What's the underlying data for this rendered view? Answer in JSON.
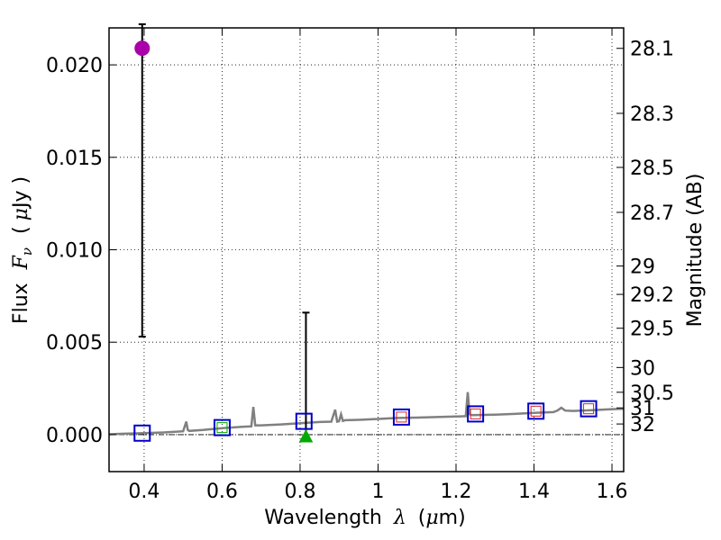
{
  "chart_data": {
    "type": "scatter",
    "xlabel_text": "Wavelength",
    "xlabel_symbol": "λ",
    "xlabel_unit_prefix": "(",
    "xlabel_unit_mu": "μ",
    "xlabel_unit_suffix": "m)",
    "ylabel_text": "Flux",
    "ylabel_symbol": "F",
    "ylabel_subscript": "ν",
    "ylabel_unit_prefix": "(",
    "ylabel_unit_mu": "μ",
    "ylabel_unit_suffix": "Jy )",
    "y2label": "Magnitude (AB)",
    "xlim": [
      0.31,
      1.63
    ],
    "ylim": [
      -0.002,
      0.022
    ],
    "grid": true,
    "x_ticks": [
      {
        "value": 0.4,
        "label": "0.4"
      },
      {
        "value": 0.6,
        "label": "0.6"
      },
      {
        "value": 0.8,
        "label": "0.8"
      },
      {
        "value": 1.0,
        "label": "1"
      },
      {
        "value": 1.2,
        "label": "1.2"
      },
      {
        "value": 1.4,
        "label": "1.4"
      },
      {
        "value": 1.6,
        "label": "1.6"
      }
    ],
    "y_ticks": [
      {
        "value": 0.0,
        "label": "0.000"
      },
      {
        "value": 0.005,
        "label": "0.005"
      },
      {
        "value": 0.01,
        "label": "0.010"
      },
      {
        "value": 0.015,
        "label": "0.015"
      },
      {
        "value": 0.02,
        "label": "0.020"
      }
    ],
    "magnitude_ticks": [
      {
        "mag": 28.1,
        "label": "28.1"
      },
      {
        "mag": 28.3,
        "label": "28.3"
      },
      {
        "mag": 28.5,
        "label": "28.5"
      },
      {
        "mag": 28.7,
        "label": "28.7"
      },
      {
        "mag": 29.0,
        "label": "29"
      },
      {
        "mag": 29.2,
        "label": "29.2"
      },
      {
        "mag": 29.5,
        "label": "29.5"
      },
      {
        "mag": 30.0,
        "label": "30"
      },
      {
        "mag": 30.5,
        "label": "30.5"
      },
      {
        "mag": 31.0,
        "label": "31"
      },
      {
        "mag": 32.0,
        "label": "32"
      }
    ],
    "observed_points": [
      {
        "name": "purple-circle",
        "x": 0.395,
        "y": 0.0209,
        "err_low": 0.0053,
        "err_high": 0.0222,
        "color": "#aa00aa",
        "marker": "circle"
      },
      {
        "name": "green-triangle",
        "x": 0.815,
        "y": -0.0001,
        "err_low": -0.0001,
        "err_high": 0.0066,
        "color": "#00aa00",
        "marker": "triangle"
      }
    ],
    "model_photometry": [
      {
        "x": 0.395,
        "y": 8e-05
      },
      {
        "x": 0.6,
        "y": 0.00038
      },
      {
        "x": 0.81,
        "y": 0.00072
      },
      {
        "x": 1.06,
        "y": 0.00095
      },
      {
        "x": 1.25,
        "y": 0.00112
      },
      {
        "x": 1.405,
        "y": 0.00127
      },
      {
        "x": 1.54,
        "y": 0.0014
      }
    ],
    "inner_markers": [
      {
        "x": 0.6,
        "y": 0.00038,
        "color": "#00aa00"
      },
      {
        "x": 1.06,
        "y": 0.00095,
        "color": "#dd2222"
      },
      {
        "x": 1.25,
        "y": 0.00112,
        "color": "#dd2222"
      },
      {
        "x": 1.405,
        "y": 0.00127,
        "color": "#dd2222"
      },
      {
        "x": 1.54,
        "y": 0.0014,
        "color": "#dd2222"
      }
    ],
    "model_spectrum": {
      "color": "#808080",
      "x": [
        0.31,
        0.35,
        0.4,
        0.45,
        0.5,
        0.508,
        0.512,
        0.516,
        0.55,
        0.6,
        0.65,
        0.675,
        0.68,
        0.685,
        0.7,
        0.75,
        0.8,
        0.85,
        0.88,
        0.89,
        0.895,
        0.9,
        0.905,
        0.91,
        0.915,
        0.95,
        1.0,
        1.05,
        1.1,
        1.15,
        1.2,
        1.225,
        1.23,
        1.235,
        1.24,
        1.3,
        1.35,
        1.4,
        1.45,
        1.46,
        1.47,
        1.48,
        1.5,
        1.55,
        1.6,
        1.63
      ],
      "y": [
        2e-05,
        5e-05,
        8e-05,
        0.00012,
        0.00018,
        0.0007,
        0.00025,
        0.0002,
        0.00025,
        0.00035,
        0.00042,
        0.00045,
        0.0015,
        0.0005,
        0.0005,
        0.00055,
        0.00062,
        0.00068,
        0.0007,
        0.00135,
        0.0007,
        0.00072,
        0.0011,
        0.00074,
        0.00078,
        0.0008,
        0.00085,
        0.0009,
        0.00092,
        0.00095,
        0.00098,
        0.001,
        0.0023,
        0.0011,
        0.00105,
        0.00108,
        0.00112,
        0.00118,
        0.00122,
        0.0013,
        0.00145,
        0.0013,
        0.00128,
        0.00132,
        0.00138,
        0.0014
      ]
    },
    "zero_line": 0.0
  }
}
